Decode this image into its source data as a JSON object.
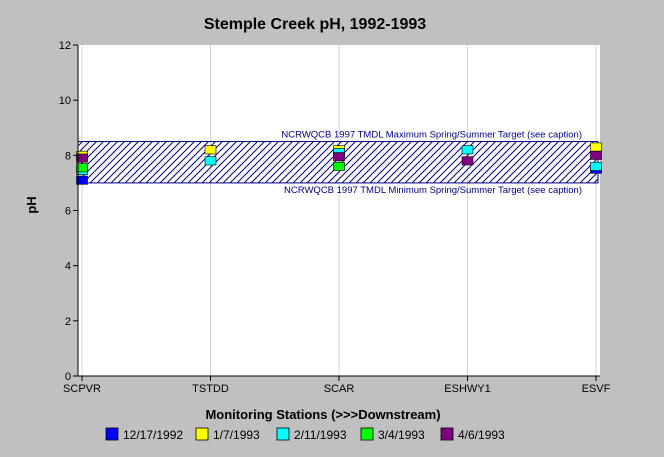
{
  "chart_data": {
    "type": "scatter",
    "title": "Stemple Creek pH, 1992-1993",
    "xlabel": "Monitoring Stations (>>>Downstream)",
    "ylabel": "pH",
    "ylim": [
      0,
      12
    ],
    "yticks": [
      0,
      2,
      4,
      6,
      8,
      10,
      12
    ],
    "categories": [
      "SCPVR",
      "TSTDD",
      "SCAR",
      "ESHWY1",
      "ESVF"
    ],
    "grid": "vertical lines at stations",
    "legend_position": "bottom",
    "target_band": {
      "max": 8.5,
      "min": 7.0,
      "max_label": "NCRWQCB 1997 TMDL Maximum Spring/Summer Target (see caption)",
      "min_label": "NCRWQCB 1997 TMDL Minimum Spring/Summer Target (see caption)",
      "color": "#00008b"
    },
    "series": [
      {
        "name": "12/17/1992",
        "color": "#0000ff",
        "values": [
          7.1,
          null,
          null,
          null,
          7.5
        ]
      },
      {
        "name": "1/7/1993",
        "color": "#ffff00",
        "values": [
          8.0,
          8.2,
          8.2,
          null,
          8.3
        ]
      },
      {
        "name": "2/11/1993",
        "color": "#00ffff",
        "values": [
          7.45,
          7.8,
          8.1,
          8.2,
          7.6
        ]
      },
      {
        "name": "3/4/1993",
        "color": "#00ff00",
        "values": [
          7.55,
          null,
          7.6,
          null,
          null
        ]
      },
      {
        "name": "4/6/1993",
        "color": "#800080",
        "values": [
          7.9,
          null,
          7.95,
          7.8,
          8.0
        ]
      }
    ]
  }
}
